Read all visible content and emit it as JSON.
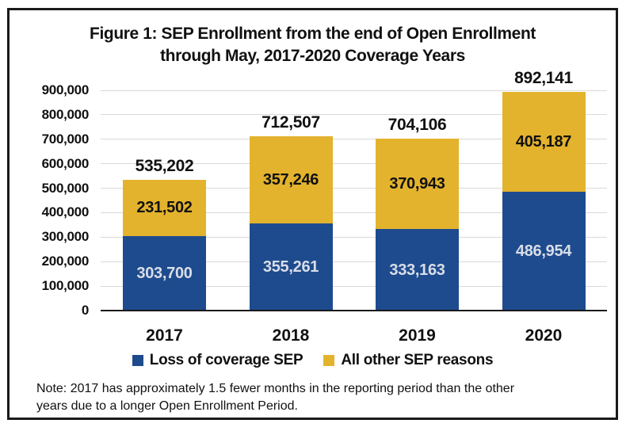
{
  "figure": {
    "title_line1": "Figure 1: SEP Enrollment from the end of Open Enrollment",
    "title_line2": "through May, 2017-2020 Coverage Years",
    "note_line1": "Note: 2017 has approximately 1.5 fewer months in the reporting period than the other",
    "note_line2": "years due to a longer Open Enrollment Period."
  },
  "colors": {
    "loss_of_coverage_blue": "#1E4B8D",
    "all_other_gold": "#E3B32D",
    "blue_segment_label_text": "#D9DEE8",
    "dark_label_text": "#111111",
    "gridline": "#D9D9D9",
    "axis_line": "#1A1A1A",
    "frame_border": "#1A1A1A"
  },
  "chart_data": {
    "type": "bar",
    "stacked": true,
    "title": "Figure 1: SEP Enrollment from the end of Open Enrollment through May, 2017-2020 Coverage Years",
    "categories": [
      "2017",
      "2018",
      "2019",
      "2020"
    ],
    "series": [
      {
        "name": "Loss of coverage SEP",
        "color": "#1E4B8D",
        "values": [
          303700,
          355261,
          333163,
          486954
        ],
        "value_labels": [
          "303,700",
          "355,261",
          "333,163",
          "486,954"
        ],
        "label_text_color": "#D9DEE8"
      },
      {
        "name": "All other SEP reasons",
        "color": "#E3B32D",
        "values": [
          231502,
          357246,
          370943,
          405187
        ],
        "value_labels": [
          "231,502",
          "357,246",
          "370,943",
          "405,187"
        ],
        "label_text_color": "#111111"
      }
    ],
    "totals": [
      535202,
      712507,
      704106,
      892141
    ],
    "total_labels": [
      "535,202",
      "712,507",
      "704,106",
      "892,141"
    ],
    "y_axis": {
      "min": 0,
      "max": 900000,
      "tick_step": 100000,
      "tick_labels": [
        "0",
        "100,000",
        "200,000",
        "300,000",
        "400,000",
        "500,000",
        "600,000",
        "700,000",
        "800,000",
        "900,000"
      ]
    },
    "legend": [
      {
        "label": "Loss of coverage SEP",
        "color": "#1E4B8D"
      },
      {
        "label": "All other SEP reasons",
        "color": "#E3B32D"
      }
    ],
    "grid": true,
    "legend_position": "bottom",
    "note": "Note: 2017 has approximately 1.5 fewer months in the reporting period than the other years due to a longer Open Enrollment Period."
  }
}
